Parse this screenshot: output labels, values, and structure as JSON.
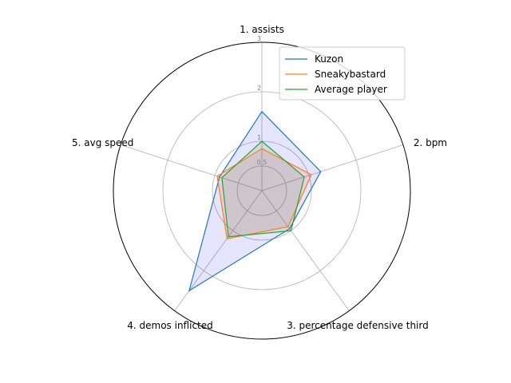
{
  "chart_data": {
    "type": "radar",
    "axes": [
      "1. assists",
      "2. bpm",
      "3. percentage defensive third",
      "4. demos inflicted",
      "5. avg speed"
    ],
    "r_ticks": [
      "0.5",
      "1",
      "2",
      "3"
    ],
    "r_max": 3,
    "grid": true,
    "legend_position": "top-right",
    "series": [
      {
        "name": "Kuzon",
        "color": "#1f77b4",
        "fill": "#0000ff",
        "fill_opacity": 0.1,
        "values": [
          1.6,
          1.25,
          0.95,
          2.5,
          0.9
        ]
      },
      {
        "name": "Sneakybastard",
        "color": "#ff7f0e",
        "fill": "#ff0000",
        "fill_opacity": 0.1,
        "values": [
          0.85,
          1.05,
          0.9,
          1.2,
          0.95
        ]
      },
      {
        "name": "Average player",
        "color": "#2ca02c",
        "fill": "#008000",
        "fill_opacity": 0.1,
        "values": [
          1.0,
          0.9,
          1.0,
          1.15,
          0.85
        ]
      }
    ]
  }
}
